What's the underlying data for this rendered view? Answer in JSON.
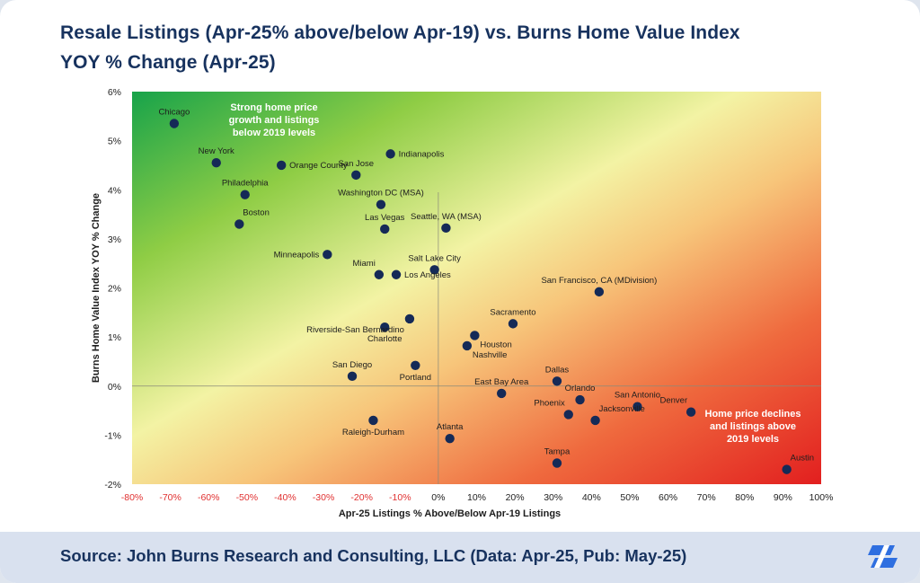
{
  "header": {
    "title_line1": "Resale Listings (Apr-25% above/below Apr-19) vs. Burns Home Value Index",
    "title_line2": "YOY % Change (Apr-25)"
  },
  "footer": {
    "source": "Source: John Burns Research and Consulting, LLC (Data: Apr-25, Pub: May-25)",
    "logo_icon": "john-burns-logo-icon"
  },
  "colors": {
    "title": "#17325e",
    "point": "#152a57",
    "green": "#1ea44a",
    "yellow": "#f2f2a0",
    "red": "#e32420"
  },
  "chart_data": {
    "type": "scatter",
    "title": "Resale Listings (Apr-25% above/below Apr-19) vs. Burns Home Value Index YOY % Change (Apr-25)",
    "xlabel": "Apr-25 Listings % Above/Below Apr-19 Listings",
    "ylabel": "Burns Home Value Index YOY % Change",
    "xlim": [
      -80,
      100
    ],
    "ylim": [
      -2,
      6
    ],
    "x_ticks": [
      -80,
      -70,
      -60,
      -50,
      -40,
      -30,
      -20,
      -10,
      0,
      10,
      20,
      30,
      40,
      50,
      60,
      70,
      80,
      90,
      100
    ],
    "y_ticks": [
      -2,
      -1,
      0,
      1,
      2,
      3,
      4,
      5,
      6
    ],
    "x_tick_labels": [
      "-80%",
      "-70%",
      "-60%",
      "-50%",
      "-40%",
      "-30%",
      "-20%",
      "-10%",
      "0%",
      "10%",
      "20%",
      "30%",
      "40%",
      "50%",
      "60%",
      "70%",
      "80%",
      "90%",
      "100%"
    ],
    "y_tick_labels": [
      "-2%",
      "-1%",
      "0%",
      "1%",
      "2%",
      "3%",
      "4%",
      "5%",
      "6%"
    ],
    "annotations": {
      "top_left": [
        "Strong home price",
        "growth and listings",
        "below 2019 levels"
      ],
      "bottom_right": [
        "Home price declines",
        "and listings above",
        "2019 levels"
      ]
    },
    "points": [
      {
        "name": "Chicago",
        "x": -69,
        "y": 5.35,
        "label_pos": "above"
      },
      {
        "name": "New York",
        "x": -58,
        "y": 4.55,
        "label_pos": "above"
      },
      {
        "name": "Orange County",
        "x": -41,
        "y": 4.5,
        "label_pos": "right"
      },
      {
        "name": "Philadelphia",
        "x": -50.5,
        "y": 3.9,
        "label_pos": "above"
      },
      {
        "name": "Boston",
        "x": -52,
        "y": 3.3,
        "label_pos": "above-right"
      },
      {
        "name": "San Jose",
        "x": -21.5,
        "y": 4.3,
        "label_pos": "above"
      },
      {
        "name": "Indianapolis",
        "x": -12.5,
        "y": 4.73,
        "label_pos": "right"
      },
      {
        "name": "Washington DC (MSA)",
        "x": -15,
        "y": 3.7,
        "label_pos": "above"
      },
      {
        "name": "Las Vegas",
        "x": -14,
        "y": 3.2,
        "label_pos": "above"
      },
      {
        "name": "Seattle, WA (MSA)",
        "x": 2,
        "y": 3.22,
        "label_pos": "above"
      },
      {
        "name": "Minneapolis",
        "x": -29,
        "y": 2.68,
        "label_pos": "left"
      },
      {
        "name": "Miami",
        "x": -15.5,
        "y": 2.27,
        "label_pos": "above-left"
      },
      {
        "name": "Los Angeles",
        "x": -11,
        "y": 2.27,
        "label_pos": "right"
      },
      {
        "name": "Salt Lake City",
        "x": -1,
        "y": 2.37,
        "label_pos": "above"
      },
      {
        "name": "San Francisco, CA (MDivision)",
        "x": 42,
        "y": 1.92,
        "label_pos": "above"
      },
      {
        "name": "Riverside-San Bernardino",
        "x": -7.5,
        "y": 1.37,
        "label_pos": "below-left"
      },
      {
        "name": "Charlotte",
        "x": -14,
        "y": 1.2,
        "label_pos": "below"
      },
      {
        "name": "Sacramento",
        "x": 19.5,
        "y": 1.27,
        "label_pos": "above"
      },
      {
        "name": "Houston",
        "x": 9.5,
        "y": 1.03,
        "label_pos": "below-right"
      },
      {
        "name": "Nashville",
        "x": 7.5,
        "y": 0.82,
        "label_pos": "below-right"
      },
      {
        "name": "San Diego",
        "x": -22.5,
        "y": 0.2,
        "label_pos": "above"
      },
      {
        "name": "Portland",
        "x": -6,
        "y": 0.42,
        "label_pos": "below"
      },
      {
        "name": "East Bay Area",
        "x": 16.5,
        "y": -0.15,
        "label_pos": "above"
      },
      {
        "name": "Dallas",
        "x": 31,
        "y": 0.1,
        "label_pos": "above"
      },
      {
        "name": "Orlando",
        "x": 37,
        "y": -0.28,
        "label_pos": "above"
      },
      {
        "name": "Phoenix",
        "x": 34,
        "y": -0.58,
        "label_pos": "above-left"
      },
      {
        "name": "San Antonio",
        "x": 52,
        "y": -0.42,
        "label_pos": "above"
      },
      {
        "name": "Jacksonville",
        "x": 41,
        "y": -0.7,
        "label_pos": "above-right"
      },
      {
        "name": "Denver",
        "x": 66,
        "y": -0.53,
        "label_pos": "above-left"
      },
      {
        "name": "Raleigh-Durham",
        "x": -17,
        "y": -0.7,
        "label_pos": "below"
      },
      {
        "name": "Atlanta",
        "x": 3,
        "y": -1.07,
        "label_pos": "above"
      },
      {
        "name": "Tampa",
        "x": 31,
        "y": -1.57,
        "label_pos": "above"
      },
      {
        "name": "Austin",
        "x": 91,
        "y": -1.7,
        "label_pos": "above-right"
      }
    ]
  }
}
